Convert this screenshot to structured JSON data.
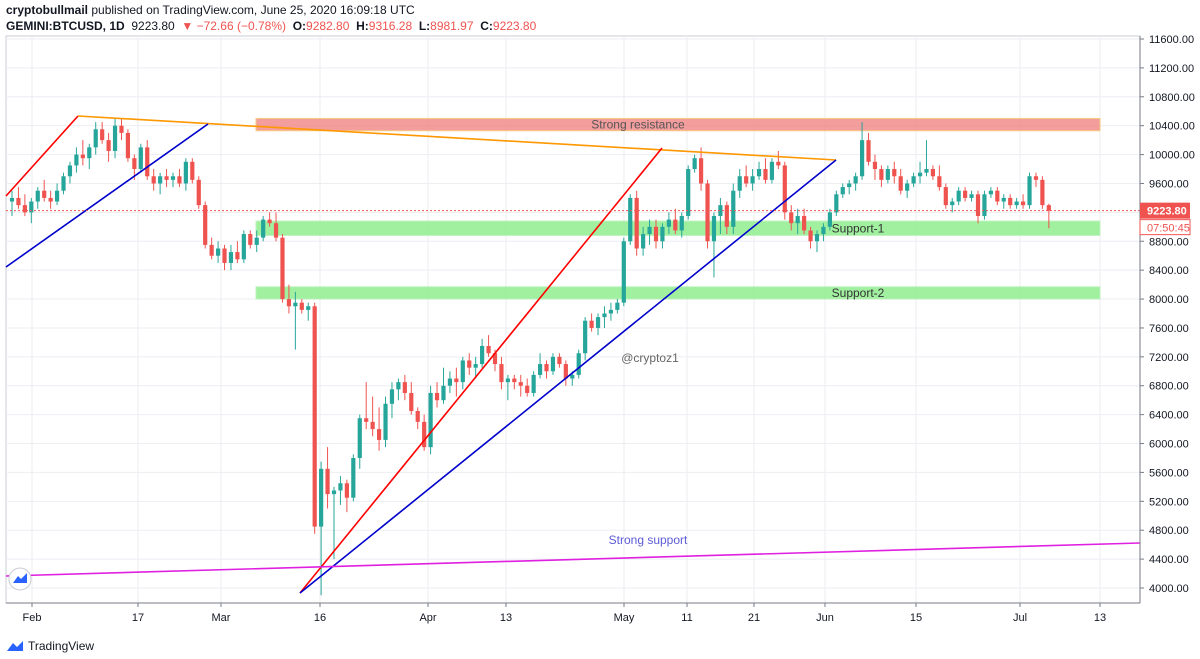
{
  "header": {
    "publisher": "cryptobullmail",
    "published_text": "published on TradingView.com, June 25, 2020 16:09:18 UTC",
    "symbol": "GEMINI:BTCUSD, 1D",
    "last": "9223.80",
    "change": "▼ −72.66 (−0.78%)",
    "o_label": "O:",
    "o_value": "9282.80",
    "h_label": "H:",
    "h_value": "9316.28",
    "l_label": "L:",
    "l_value": "8981.97",
    "c_label": "C:",
    "c_value": "9223.80"
  },
  "footer": {
    "brand": "TradingView"
  },
  "colors": {
    "up": "#26a69a",
    "down": "#ef5350",
    "resistance_zone": "#f28c8c",
    "support_zone": "#90ee90",
    "trend_orange": "#ff9800",
    "trend_red": "#ff0000",
    "trend_blue": "#0000cc",
    "trend_magenta": "#e020e0"
  },
  "chart_data": {
    "type": "candlestick",
    "x_tick_labels": [
      "Feb",
      "17",
      "Mar",
      "16",
      "Apr",
      "13",
      "May",
      "11",
      "21",
      "Jun",
      "15",
      "Jul",
      "13"
    ],
    "y_tick_labels": [
      "4000.00",
      "4400.00",
      "4800.00",
      "5200.00",
      "5600.00",
      "6000.00",
      "6400.00",
      "6800.00",
      "7200.00",
      "7600.00",
      "8000.00",
      "8400.00",
      "8800.00",
      "9200.00",
      "9600.00",
      "10000.00",
      "10400.00",
      "10800.00",
      "11200.00",
      "11600.00"
    ],
    "ylim": [
      3800,
      11700
    ],
    "last_price_label": "9223.80",
    "countdown_label": "07:50:45",
    "watermark": "@cryptoz1",
    "zones": [
      {
        "name": "resistance",
        "label": "Strong resistance",
        "low": 10330,
        "high": 10500
      },
      {
        "name": "support-1",
        "label": "Support-1",
        "low": 8880,
        "high": 9080
      },
      {
        "name": "support-2",
        "label": "Support-2",
        "low": 8000,
        "high": 8170
      }
    ],
    "strong_support_label": "Strong support",
    "candles": [
      [
        9350,
        9500,
        9150,
        9400
      ],
      [
        9400,
        9550,
        9250,
        9300
      ],
      [
        9300,
        9450,
        9150,
        9200
      ],
      [
        9200,
        9400,
        9050,
        9350
      ],
      [
        9350,
        9550,
        9250,
        9500
      ],
      [
        9500,
        9650,
        9350,
        9400
      ],
      [
        9400,
        9500,
        9250,
        9350
      ],
      [
        9350,
        9600,
        9300,
        9500
      ],
      [
        9500,
        9750,
        9450,
        9700
      ],
      [
        9700,
        9900,
        9600,
        9850
      ],
      [
        9850,
        10100,
        9750,
        10000
      ],
      [
        10000,
        10200,
        9850,
        9950
      ],
      [
        9950,
        10150,
        9800,
        10100
      ],
      [
        10100,
        10450,
        10000,
        10350
      ],
      [
        10350,
        10450,
        10150,
        10200
      ],
      [
        10200,
        10300,
        9900,
        10050
      ],
      [
        10050,
        10500,
        9950,
        10400
      ],
      [
        10400,
        10500,
        10200,
        10300
      ],
      [
        10300,
        10350,
        9900,
        9950
      ],
      [
        9950,
        10000,
        9650,
        9800
      ],
      [
        9800,
        10150,
        9750,
        10100
      ],
      [
        10100,
        10200,
        9650,
        9700
      ],
      [
        9700,
        9800,
        9500,
        9600
      ],
      [
        9600,
        9750,
        9450,
        9700
      ],
      [
        9700,
        9800,
        9550,
        9650
      ],
      [
        9650,
        9750,
        9550,
        9700
      ],
      [
        9700,
        9800,
        9550,
        9600
      ],
      [
        9600,
        9950,
        9500,
        9900
      ],
      [
        9900,
        9950,
        9600,
        9650
      ],
      [
        9650,
        9700,
        9250,
        9300
      ],
      [
        9300,
        9350,
        8700,
        8750
      ],
      [
        8750,
        8850,
        8550,
        8600
      ],
      [
        8600,
        8800,
        8500,
        8700
      ],
      [
        8700,
        8750,
        8400,
        8500
      ],
      [
        8500,
        8750,
        8400,
        8650
      ],
      [
        8650,
        8800,
        8500,
        8550
      ],
      [
        8550,
        8950,
        8500,
        8900
      ],
      [
        8900,
        8950,
        8700,
        8750
      ],
      [
        8750,
        8950,
        8650,
        8850
      ],
      [
        8850,
        9150,
        8800,
        9100
      ],
      [
        9100,
        9200,
        9000,
        9050
      ],
      [
        9050,
        9200,
        8800,
        8850
      ],
      [
        8850,
        8900,
        7950,
        8000
      ],
      [
        8000,
        8200,
        7800,
        7900
      ],
      [
        7900,
        8100,
        7300,
        7950
      ],
      [
        7950,
        8000,
        7800,
        7850
      ],
      [
        7850,
        7950,
        7700,
        7900
      ],
      [
        7900,
        7950,
        4750,
        4850
      ],
      [
        4850,
        5750,
        3900,
        5650
      ],
      [
        5650,
        5950,
        5100,
        5300
      ],
      [
        5300,
        5400,
        4400,
        5350
      ],
      [
        5350,
        5550,
        5150,
        5450
      ],
      [
        5450,
        5500,
        5050,
        5250
      ],
      [
        5250,
        5850,
        5200,
        5800
      ],
      [
        5800,
        6400,
        5650,
        6350
      ],
      [
        6350,
        6850,
        6200,
        6300
      ],
      [
        6300,
        6650,
        6100,
        6200
      ],
      [
        6200,
        6500,
        5900,
        6050
      ],
      [
        6050,
        6650,
        5950,
        6550
      ],
      [
        6550,
        6850,
        6350,
        6750
      ],
      [
        6750,
        6900,
        6600,
        6850
      ],
      [
        6850,
        6950,
        6600,
        6700
      ],
      [
        6700,
        6850,
        6400,
        6450
      ],
      [
        6450,
        6500,
        6200,
        6300
      ],
      [
        6300,
        6400,
        5900,
        5950
      ],
      [
        5950,
        6800,
        5850,
        6700
      ],
      [
        6700,
        6850,
        6500,
        6600
      ],
      [
        6600,
        7050,
        6550,
        6800
      ],
      [
        6800,
        7000,
        6700,
        6900
      ],
      [
        6900,
        7050,
        6650,
        6850
      ],
      [
        6850,
        7200,
        6750,
        7150
      ],
      [
        7150,
        7250,
        6950,
        7050
      ],
      [
        7050,
        7200,
        6900,
        7100
      ],
      [
        7100,
        7450,
        7050,
        7350
      ],
      [
        7350,
        7500,
        7200,
        7250
      ],
      [
        7250,
        7300,
        7000,
        7100
      ],
      [
        7100,
        7200,
        6750,
        6850
      ],
      [
        6850,
        6950,
        6600,
        6900
      ],
      [
        6900,
        6950,
        6750,
        6850
      ],
      [
        6850,
        6950,
        6650,
        6800
      ],
      [
        6800,
        6900,
        6650,
        6700
      ],
      [
        6700,
        7000,
        6650,
        6950
      ],
      [
        6950,
        7250,
        6900,
        7100
      ],
      [
        7100,
        7150,
        6900,
        7000
      ],
      [
        7000,
        7250,
        6950,
        7200
      ],
      [
        7200,
        7250,
        7050,
        7100
      ],
      [
        7100,
        7150,
        6800,
        6900
      ],
      [
        6900,
        7000,
        6800,
        6950
      ],
      [
        6950,
        7300,
        6900,
        7250
      ],
      [
        7250,
        7750,
        7150,
        7700
      ],
      [
        7700,
        7800,
        7550,
        7600
      ],
      [
        7600,
        7800,
        7500,
        7750
      ],
      [
        7750,
        7900,
        7600,
        7800
      ],
      [
        7800,
        7950,
        7700,
        7850
      ],
      [
        7850,
        8000,
        7800,
        7950
      ],
      [
        7950,
        8850,
        7900,
        8800
      ],
      [
        8800,
        9450,
        8750,
        9400
      ],
      [
        9400,
        9500,
        8600,
        8700
      ],
      [
        8700,
        9000,
        8600,
        8900
      ],
      [
        8900,
        9100,
        8750,
        9000
      ],
      [
        9000,
        9100,
        8700,
        8800
      ],
      [
        8800,
        9050,
        8700,
        9000
      ],
      [
        9000,
        9200,
        8900,
        9100
      ],
      [
        9100,
        9250,
        8900,
        8950
      ],
      [
        8950,
        9200,
        8850,
        9150
      ],
      [
        9150,
        9850,
        9100,
        9800
      ],
      [
        9800,
        10000,
        9750,
        9950
      ],
      [
        9950,
        10100,
        9500,
        9600
      ],
      [
        9600,
        9650,
        8700,
        8800
      ],
      [
        8800,
        9200,
        8300,
        9150
      ],
      [
        9150,
        9400,
        8900,
        9300
      ],
      [
        9300,
        9350,
        8900,
        9000
      ],
      [
        9000,
        9600,
        8900,
        9500
      ],
      [
        9500,
        9800,
        9400,
        9700
      ],
      [
        9700,
        9850,
        9550,
        9600
      ],
      [
        9600,
        9800,
        9500,
        9700
      ],
      [
        9700,
        9900,
        9650,
        9800
      ],
      [
        9800,
        9950,
        9600,
        9650
      ],
      [
        9650,
        9950,
        9600,
        9900
      ],
      [
        9900,
        10050,
        9800,
        9850
      ],
      [
        9850,
        9900,
        9100,
        9200
      ],
      [
        9200,
        9300,
        8950,
        9050
      ],
      [
        9050,
        9250,
        8900,
        9150
      ],
      [
        9150,
        9250,
        8900,
        8950
      ],
      [
        8950,
        9000,
        8700,
        8800
      ],
      [
        8800,
        8950,
        8650,
        8900
      ],
      [
        8900,
        9050,
        8800,
        9000
      ],
      [
        9000,
        9250,
        8950,
        9200
      ],
      [
        9200,
        9500,
        9150,
        9450
      ],
      [
        9450,
        9600,
        9400,
        9550
      ],
      [
        9550,
        9650,
        9450,
        9600
      ],
      [
        9600,
        9750,
        9500,
        9700
      ],
      [
        9700,
        10450,
        9650,
        10200
      ],
      [
        10200,
        10300,
        9850,
        9900
      ],
      [
        9900,
        10000,
        9650,
        9800
      ],
      [
        9800,
        9850,
        9550,
        9650
      ],
      [
        9650,
        9850,
        9600,
        9800
      ],
      [
        9800,
        9900,
        9600,
        9700
      ],
      [
        9700,
        9800,
        9450,
        9500
      ],
      [
        9500,
        9650,
        9400,
        9600
      ],
      [
        9600,
        9750,
        9550,
        9700
      ],
      [
        9700,
        9900,
        9600,
        9750
      ],
      [
        9750,
        10200,
        9700,
        9800
      ],
      [
        9800,
        9850,
        9650,
        9700
      ],
      [
        9700,
        9850,
        9500,
        9550
      ],
      [
        9550,
        9600,
        9250,
        9300
      ],
      [
        9300,
        9400,
        9200,
        9350
      ],
      [
        9350,
        9550,
        9300,
        9500
      ],
      [
        9500,
        9550,
        9350,
        9400
      ],
      [
        9400,
        9500,
        9350,
        9450
      ],
      [
        9450,
        9500,
        9050,
        9150
      ],
      [
        9150,
        9500,
        9100,
        9450
      ],
      [
        9450,
        9550,
        9400,
        9500
      ],
      [
        9500,
        9550,
        9300,
        9350
      ],
      [
        9350,
        9450,
        9250,
        9400
      ],
      [
        9400,
        9450,
        9250,
        9300
      ],
      [
        9300,
        9400,
        9250,
        9350
      ],
      [
        9350,
        9450,
        9250,
        9300
      ],
      [
        9300,
        9750,
        9250,
        9700
      ],
      [
        9700,
        9750,
        9550,
        9650
      ],
      [
        9650,
        9700,
        9250,
        9300
      ],
      [
        9300,
        9320,
        8980,
        9224
      ]
    ]
  }
}
